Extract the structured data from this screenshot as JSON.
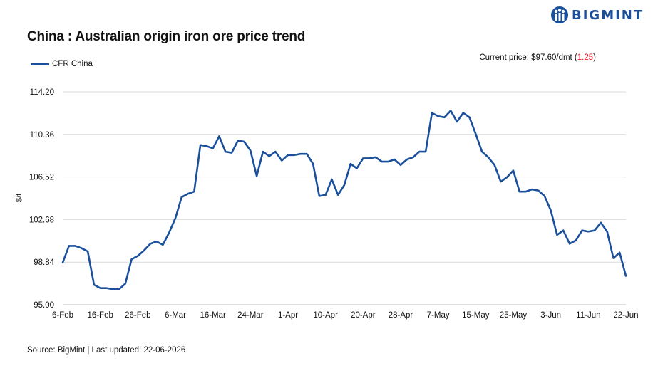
{
  "title": "China : Australian origin iron ore price trend",
  "logo": {
    "text": "BIGMINT",
    "icon": "bigmint-logo-icon",
    "color": "#1a4f9c"
  },
  "current_price": {
    "label": "Current price: $97.60/dmt (",
    "change": "1.25",
    "suffix": ")"
  },
  "source": "Source: BigMint | Last updated: 22-06-2026",
  "colors": {
    "line": "#1a4f9c",
    "grid": "#d9d9d9",
    "change": "#e31b23"
  },
  "chart_data": {
    "type": "line",
    "title": "China : Australian origin iron ore price trend",
    "ylabel": "$/t",
    "xlabel": "",
    "ylim": [
      95.0,
      114.2
    ],
    "yticks": [
      "95.00",
      "98.84",
      "102.68",
      "106.52",
      "110.36",
      "114.20"
    ],
    "xticks": [
      "6-Feb",
      "16-Feb",
      "26-Feb",
      "6-Mar",
      "16-Mar",
      "24-Mar",
      "1-Apr",
      "10-Apr",
      "20-Apr",
      "28-Apr",
      "7-May",
      "15-May",
      "25-May",
      "3-Jun",
      "11-Jun",
      "22-Jun"
    ],
    "grid": "horizontal",
    "legend": "top-left",
    "series": [
      {
        "name": "CFR China",
        "values": [
          98.8,
          100.3,
          100.3,
          100.1,
          99.8,
          96.8,
          96.5,
          96.5,
          96.4,
          96.4,
          96.9,
          99.1,
          99.4,
          99.9,
          100.5,
          100.7,
          100.4,
          101.5,
          102.8,
          104.7,
          105.0,
          105.2,
          109.4,
          109.3,
          109.1,
          110.2,
          108.8,
          108.7,
          109.8,
          109.7,
          108.9,
          106.6,
          108.8,
          108.4,
          108.8,
          108.0,
          108.5,
          108.5,
          108.6,
          108.6,
          107.7,
          104.8,
          104.9,
          106.3,
          104.9,
          105.8,
          107.7,
          107.3,
          108.2,
          108.2,
          108.3,
          107.9,
          107.9,
          108.1,
          107.6,
          108.1,
          108.3,
          108.8,
          108.8,
          112.3,
          112.0,
          111.9,
          112.5,
          111.5,
          112.3,
          111.9,
          110.4,
          108.8,
          108.3,
          107.6,
          106.1,
          106.5,
          107.1,
          105.2,
          105.2,
          105.4,
          105.3,
          104.8,
          103.5,
          101.3,
          101.7,
          100.5,
          100.8,
          101.7,
          101.6,
          101.7,
          102.4,
          101.6,
          99.2,
          99.7,
          97.6
        ]
      }
    ]
  }
}
